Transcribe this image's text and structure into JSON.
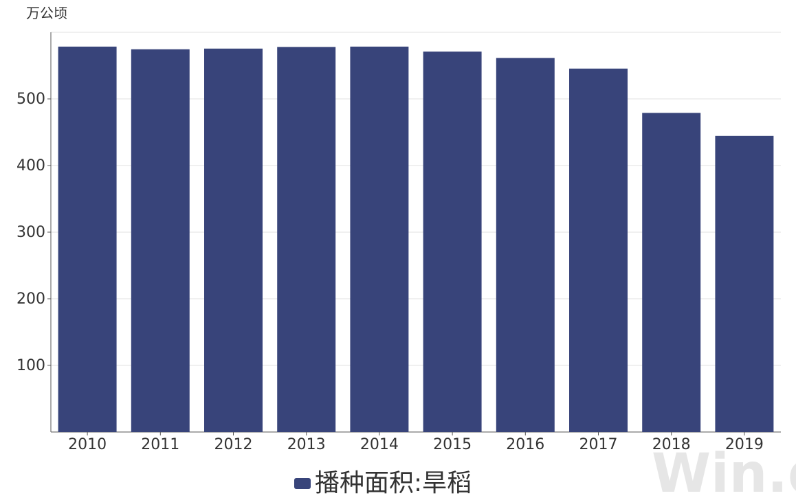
{
  "chart_data": {
    "type": "bar",
    "unit_label": "万公顷",
    "categories": [
      "2010",
      "2011",
      "2012",
      "2013",
      "2014",
      "2015",
      "2016",
      "2017",
      "2018",
      "2019"
    ],
    "series": [
      {
        "name": "播种面积:旱稻",
        "color": "#38447a",
        "values": [
          578.5,
          574.5,
          575.5,
          578.0,
          578.5,
          571.0,
          561.5,
          545.5,
          479.0,
          444.5
        ]
      }
    ],
    "ylim": [
      0,
      600
    ],
    "yticks": [
      100,
      200,
      300,
      400,
      500
    ],
    "grid": true,
    "legend_position": "bottom-center"
  },
  "watermark": {
    "text": "Win.d"
  }
}
